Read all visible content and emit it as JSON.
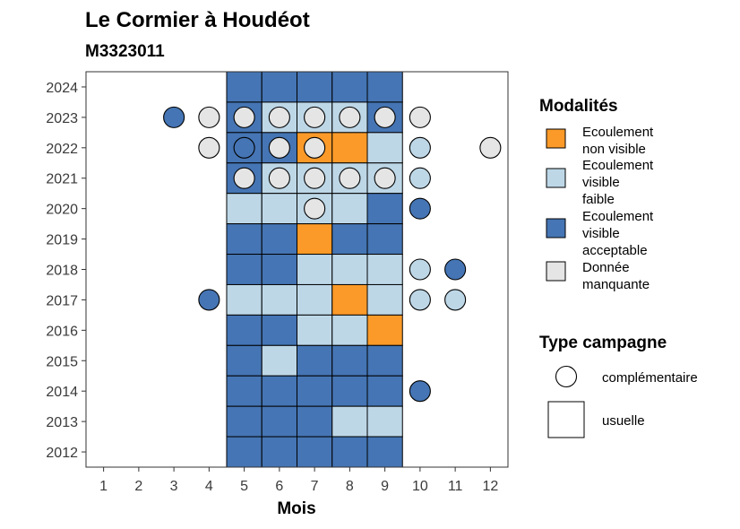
{
  "chart_data": {
    "type": "heatmap",
    "title": "Le Cormier à Houdéot",
    "subtitle": "M3323011",
    "xlabel": "Mois",
    "ylabel": "",
    "x_ticks": [
      1,
      2,
      3,
      4,
      5,
      6,
      7,
      8,
      9,
      10,
      11,
      12
    ],
    "y_ticks": [
      2012,
      2013,
      2014,
      2015,
      2016,
      2017,
      2018,
      2019,
      2020,
      2021,
      2022,
      2023,
      2024
    ],
    "xlim": [
      0.5,
      12.5
    ],
    "ylim": [
      2011.5,
      2024.5
    ],
    "grid": false,
    "modalites": [
      {
        "key": "nv",
        "label_lines": [
          "Ecoulement",
          "non visible"
        ],
        "color": "#FB9A29"
      },
      {
        "key": "vf",
        "label_lines": [
          "Ecoulement",
          "visible",
          "faible"
        ],
        "color": "#BDD7E7"
      },
      {
        "key": "va",
        "label_lines": [
          "Ecoulement",
          "visible",
          "acceptable"
        ],
        "color": "#4575B4"
      },
      {
        "key": "dm",
        "label_lines": [
          "Donnée",
          "manquante"
        ],
        "color": "#E5E5E5"
      }
    ],
    "legend_modalites_title": "Modalités",
    "legend_campagne_title": "Type campagne",
    "campagne_types": [
      {
        "key": "complementaire",
        "label": "complémentaire",
        "shape": "circle"
      },
      {
        "key": "usuelle",
        "label": "usuelle",
        "shape": "square"
      }
    ],
    "usuelle": [
      {
        "year": 2024,
        "month": 5,
        "v": "va"
      },
      {
        "year": 2024,
        "month": 6,
        "v": "va"
      },
      {
        "year": 2024,
        "month": 7,
        "v": "va"
      },
      {
        "year": 2024,
        "month": 8,
        "v": "va"
      },
      {
        "year": 2024,
        "month": 9,
        "v": "va"
      },
      {
        "year": 2023,
        "month": 5,
        "v": "va"
      },
      {
        "year": 2023,
        "month": 6,
        "v": "vf"
      },
      {
        "year": 2023,
        "month": 7,
        "v": "vf"
      },
      {
        "year": 2023,
        "month": 8,
        "v": "vf"
      },
      {
        "year": 2023,
        "month": 9,
        "v": "va"
      },
      {
        "year": 2022,
        "month": 5,
        "v": "va"
      },
      {
        "year": 2022,
        "month": 6,
        "v": "va"
      },
      {
        "year": 2022,
        "month": 7,
        "v": "nv"
      },
      {
        "year": 2022,
        "month": 8,
        "v": "nv"
      },
      {
        "year": 2022,
        "month": 9,
        "v": "vf"
      },
      {
        "year": 2021,
        "month": 5,
        "v": "va"
      },
      {
        "year": 2021,
        "month": 6,
        "v": "vf"
      },
      {
        "year": 2021,
        "month": 7,
        "v": "vf"
      },
      {
        "year": 2021,
        "month": 8,
        "v": "vf"
      },
      {
        "year": 2021,
        "month": 9,
        "v": "vf"
      },
      {
        "year": 2020,
        "month": 5,
        "v": "vf"
      },
      {
        "year": 2020,
        "month": 6,
        "v": "vf"
      },
      {
        "year": 2020,
        "month": 7,
        "v": "vf"
      },
      {
        "year": 2020,
        "month": 8,
        "v": "vf"
      },
      {
        "year": 2020,
        "month": 9,
        "v": "va"
      },
      {
        "year": 2019,
        "month": 5,
        "v": "va"
      },
      {
        "year": 2019,
        "month": 6,
        "v": "va"
      },
      {
        "year": 2019,
        "month": 7,
        "v": "nv"
      },
      {
        "year": 2019,
        "month": 8,
        "v": "va"
      },
      {
        "year": 2019,
        "month": 9,
        "v": "va"
      },
      {
        "year": 2018,
        "month": 5,
        "v": "va"
      },
      {
        "year": 2018,
        "month": 6,
        "v": "va"
      },
      {
        "year": 2018,
        "month": 7,
        "v": "vf"
      },
      {
        "year": 2018,
        "month": 8,
        "v": "vf"
      },
      {
        "year": 2018,
        "month": 9,
        "v": "vf"
      },
      {
        "year": 2017,
        "month": 5,
        "v": "vf"
      },
      {
        "year": 2017,
        "month": 6,
        "v": "vf"
      },
      {
        "year": 2017,
        "month": 7,
        "v": "vf"
      },
      {
        "year": 2017,
        "month": 8,
        "v": "nv"
      },
      {
        "year": 2017,
        "month": 9,
        "v": "vf"
      },
      {
        "year": 2016,
        "month": 5,
        "v": "va"
      },
      {
        "year": 2016,
        "month": 6,
        "v": "va"
      },
      {
        "year": 2016,
        "month": 7,
        "v": "vf"
      },
      {
        "year": 2016,
        "month": 8,
        "v": "vf"
      },
      {
        "year": 2016,
        "month": 9,
        "v": "nv"
      },
      {
        "year": 2015,
        "month": 5,
        "v": "va"
      },
      {
        "year": 2015,
        "month": 6,
        "v": "vf"
      },
      {
        "year": 2015,
        "month": 7,
        "v": "va"
      },
      {
        "year": 2015,
        "month": 8,
        "v": "va"
      },
      {
        "year": 2015,
        "month": 9,
        "v": "va"
      },
      {
        "year": 2014,
        "month": 5,
        "v": "va"
      },
      {
        "year": 2014,
        "month": 6,
        "v": "va"
      },
      {
        "year": 2014,
        "month": 7,
        "v": "va"
      },
      {
        "year": 2014,
        "month": 8,
        "v": "va"
      },
      {
        "year": 2014,
        "month": 9,
        "v": "va"
      },
      {
        "year": 2013,
        "month": 5,
        "v": "va"
      },
      {
        "year": 2013,
        "month": 6,
        "v": "va"
      },
      {
        "year": 2013,
        "month": 7,
        "v": "va"
      },
      {
        "year": 2013,
        "month": 8,
        "v": "vf"
      },
      {
        "year": 2013,
        "month": 9,
        "v": "vf"
      },
      {
        "year": 2012,
        "month": 5,
        "v": "va"
      },
      {
        "year": 2012,
        "month": 6,
        "v": "va"
      },
      {
        "year": 2012,
        "month": 7,
        "v": "va"
      },
      {
        "year": 2012,
        "month": 8,
        "v": "va"
      },
      {
        "year": 2012,
        "month": 9,
        "v": "va"
      }
    ],
    "complementaire": [
      {
        "year": 2023,
        "month": 3,
        "v": "va"
      },
      {
        "year": 2023,
        "month": 4,
        "v": "dm"
      },
      {
        "year": 2023,
        "month": 5,
        "v": "dm"
      },
      {
        "year": 2023,
        "month": 6,
        "v": "dm"
      },
      {
        "year": 2023,
        "month": 7,
        "v": "dm"
      },
      {
        "year": 2023,
        "month": 8,
        "v": "dm"
      },
      {
        "year": 2023,
        "month": 9,
        "v": "dm"
      },
      {
        "year": 2023,
        "month": 10,
        "v": "dm"
      },
      {
        "year": 2022,
        "month": 4,
        "v": "dm"
      },
      {
        "year": 2022,
        "month": 5,
        "v": "va"
      },
      {
        "year": 2022,
        "month": 6,
        "v": "dm"
      },
      {
        "year": 2022,
        "month": 7,
        "v": "dm"
      },
      {
        "year": 2022,
        "month": 10,
        "v": "vf"
      },
      {
        "year": 2022,
        "month": 12,
        "v": "dm"
      },
      {
        "year": 2021,
        "month": 5,
        "v": "dm"
      },
      {
        "year": 2021,
        "month": 6,
        "v": "dm"
      },
      {
        "year": 2021,
        "month": 7,
        "v": "dm"
      },
      {
        "year": 2021,
        "month": 8,
        "v": "dm"
      },
      {
        "year": 2021,
        "month": 9,
        "v": "dm"
      },
      {
        "year": 2021,
        "month": 10,
        "v": "vf"
      },
      {
        "year": 2020,
        "month": 7,
        "v": "dm"
      },
      {
        "year": 2020,
        "month": 10,
        "v": "va"
      },
      {
        "year": 2018,
        "month": 10,
        "v": "vf"
      },
      {
        "year": 2018,
        "month": 11,
        "v": "va"
      },
      {
        "year": 2017,
        "month": 4,
        "v": "va"
      },
      {
        "year": 2017,
        "month": 10,
        "v": "vf"
      },
      {
        "year": 2017,
        "month": 11,
        "v": "vf"
      },
      {
        "year": 2014,
        "month": 10,
        "v": "va"
      }
    ]
  }
}
